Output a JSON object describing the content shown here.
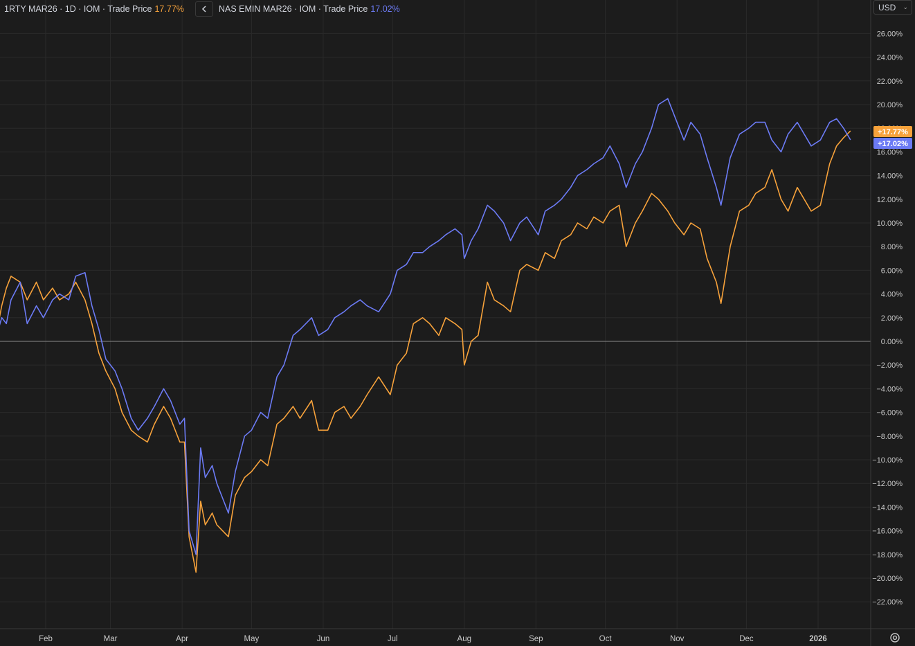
{
  "legend": [
    {
      "label": "1RTY MAR26 · 1D · IOM · Trade Price",
      "value": "17.77%",
      "color": "#f7a23b"
    },
    {
      "label": "NAS EMIN MAR26 · IOM · Trade Price",
      "value": "17.02%",
      "color": "#6c7bf5"
    }
  ],
  "toolbar": {
    "currency": "USD",
    "collapse_icon": "chevron-left-icon",
    "settings_icon": "settings-icon"
  },
  "chart_data": {
    "type": "line",
    "ylim": [
      -24,
      28
    ],
    "yticks": [
      -22,
      -20,
      -18,
      -16,
      -14,
      -12,
      -10,
      -8,
      -6,
      -4,
      -2,
      0,
      2,
      4,
      6,
      8,
      10,
      12,
      14,
      16,
      18,
      20,
      22,
      24,
      26
    ],
    "ytick_labels": [
      "−22.00%",
      "−20.00%",
      "−18.00%",
      "−16.00%",
      "−14.00%",
      "−12.00%",
      "−10.00%",
      "−8.00%",
      "−6.00%",
      "−4.00%",
      "−2.00%",
      "0.00%",
      "2.00%",
      "4.00%",
      "6.00%",
      "8.00%",
      "10.00%",
      "12.00%",
      "14.00%",
      "16.00%",
      "18.00%",
      "20.00%",
      "22.00%",
      "24.00%",
      "26.00%"
    ],
    "x_months": [
      {
        "date": "2025-02-01",
        "label": "Feb"
      },
      {
        "date": "2025-03-01",
        "label": "Mar"
      },
      {
        "date": "2025-04-01",
        "label": "Apr"
      },
      {
        "date": "2025-05-01",
        "label": "May"
      },
      {
        "date": "2025-06-01",
        "label": "Jun"
      },
      {
        "date": "2025-07-01",
        "label": "Jul"
      },
      {
        "date": "2025-08-01",
        "label": "Aug"
      },
      {
        "date": "2025-09-01",
        "label": "Sep"
      },
      {
        "date": "2025-10-01",
        "label": "Oct"
      },
      {
        "date": "2025-11-01",
        "label": "Nov"
      },
      {
        "date": "2025-12-01",
        "label": "Dec"
      },
      {
        "date": "2026-01-01",
        "label": "2026"
      }
    ],
    "grid": true,
    "zero_line": true,
    "series": [
      {
        "name": "1RTY MAR26",
        "color": "#f7a23b",
        "last_label": "+17.77%",
        "points": [
          [
            "2025-01-10",
            0
          ],
          [
            "2025-01-13",
            3
          ],
          [
            "2025-01-15",
            4.5
          ],
          [
            "2025-01-17",
            5.5
          ],
          [
            "2025-01-21",
            5
          ],
          [
            "2025-01-24",
            3.5
          ],
          [
            "2025-01-28",
            5
          ],
          [
            "2025-01-31",
            3.5
          ],
          [
            "2025-02-04",
            4.5
          ],
          [
            "2025-02-07",
            3.5
          ],
          [
            "2025-02-11",
            4
          ],
          [
            "2025-02-14",
            5
          ],
          [
            "2025-02-18",
            3.5
          ],
          [
            "2025-02-21",
            1.5
          ],
          [
            "2025-02-24",
            -1
          ],
          [
            "2025-02-27",
            -2.5
          ],
          [
            "2025-03-03",
            -4
          ],
          [
            "2025-03-06",
            -6
          ],
          [
            "2025-03-10",
            -7.5
          ],
          [
            "2025-03-13",
            -8
          ],
          [
            "2025-03-17",
            -8.5
          ],
          [
            "2025-03-20",
            -7
          ],
          [
            "2025-03-24",
            -5.5
          ],
          [
            "2025-03-27",
            -6.5
          ],
          [
            "2025-03-31",
            -8.5
          ],
          [
            "2025-04-02",
            -8.5
          ],
          [
            "2025-04-04",
            -16.5
          ],
          [
            "2025-04-07",
            -19.5
          ],
          [
            "2025-04-09",
            -13.5
          ],
          [
            "2025-04-11",
            -15.5
          ],
          [
            "2025-04-14",
            -14.5
          ],
          [
            "2025-04-16",
            -15.5
          ],
          [
            "2025-04-21",
            -16.5
          ],
          [
            "2025-04-24",
            -13
          ],
          [
            "2025-04-28",
            -11.5
          ],
          [
            "2025-05-01",
            -11
          ],
          [
            "2025-05-05",
            -10
          ],
          [
            "2025-05-08",
            -10.5
          ],
          [
            "2025-05-12",
            -7
          ],
          [
            "2025-05-15",
            -6.5
          ],
          [
            "2025-05-19",
            -5.5
          ],
          [
            "2025-05-22",
            -6.5
          ],
          [
            "2025-05-27",
            -5
          ],
          [
            "2025-05-30",
            -7.5
          ],
          [
            "2025-06-03",
            -7.5
          ],
          [
            "2025-06-06",
            -6
          ],
          [
            "2025-06-10",
            -5.5
          ],
          [
            "2025-06-13",
            -6.5
          ],
          [
            "2025-06-17",
            -5.5
          ],
          [
            "2025-06-20",
            -4.5
          ],
          [
            "2025-06-25",
            -3
          ],
          [
            "2025-06-30",
            -4.5
          ],
          [
            "2025-07-03",
            -2
          ],
          [
            "2025-07-07",
            -1
          ],
          [
            "2025-07-10",
            1.5
          ],
          [
            "2025-07-14",
            2
          ],
          [
            "2025-07-17",
            1.5
          ],
          [
            "2025-07-21",
            0.5
          ],
          [
            "2025-07-24",
            2
          ],
          [
            "2025-07-28",
            1.5
          ],
          [
            "2025-07-31",
            1
          ],
          [
            "2025-08-01",
            -2
          ],
          [
            "2025-08-04",
            0
          ],
          [
            "2025-08-07",
            0.5
          ],
          [
            "2025-08-11",
            5
          ],
          [
            "2025-08-14",
            3.5
          ],
          [
            "2025-08-18",
            3
          ],
          [
            "2025-08-21",
            2.5
          ],
          [
            "2025-08-25",
            6
          ],
          [
            "2025-08-28",
            6.5
          ],
          [
            "2025-09-02",
            6
          ],
          [
            "2025-09-05",
            7.5
          ],
          [
            "2025-09-09",
            7
          ],
          [
            "2025-09-12",
            8.5
          ],
          [
            "2025-09-16",
            9
          ],
          [
            "2025-09-19",
            10
          ],
          [
            "2025-09-23",
            9.5
          ],
          [
            "2025-09-26",
            10.5
          ],
          [
            "2025-09-30",
            10
          ],
          [
            "2025-10-03",
            11
          ],
          [
            "2025-10-07",
            11.5
          ],
          [
            "2025-10-10",
            8
          ],
          [
            "2025-10-14",
            10
          ],
          [
            "2025-10-17",
            11
          ],
          [
            "2025-10-21",
            12.5
          ],
          [
            "2025-10-24",
            12
          ],
          [
            "2025-10-28",
            11
          ],
          [
            "2025-10-31",
            10
          ],
          [
            "2025-11-04",
            9
          ],
          [
            "2025-11-07",
            10
          ],
          [
            "2025-11-11",
            9.5
          ],
          [
            "2025-11-14",
            7
          ],
          [
            "2025-11-18",
            5
          ],
          [
            "2025-11-20",
            3.2
          ],
          [
            "2025-11-24",
            8
          ],
          [
            "2025-11-28",
            11
          ],
          [
            "2025-12-02",
            11.5
          ],
          [
            "2025-12-05",
            12.5
          ],
          [
            "2025-12-09",
            13
          ],
          [
            "2025-12-12",
            14.5
          ],
          [
            "2025-12-16",
            12
          ],
          [
            "2025-12-19",
            11
          ],
          [
            "2025-12-23",
            13
          ],
          [
            "2025-12-29",
            11
          ],
          [
            "2026-01-02",
            11.5
          ],
          [
            "2026-01-06",
            15
          ],
          [
            "2026-01-09",
            16.5
          ],
          [
            "2026-01-12",
            17.2
          ],
          [
            "2026-01-15",
            17.77
          ]
        ]
      },
      {
        "name": "NAS EMIN MAR26",
        "color": "#6c7bf5",
        "last_label": "+17.02%",
        "points": [
          [
            "2025-01-10",
            0
          ],
          [
            "2025-01-13",
            2
          ],
          [
            "2025-01-15",
            1.5
          ],
          [
            "2025-01-17",
            3.5
          ],
          [
            "2025-01-21",
            5
          ],
          [
            "2025-01-24",
            1.5
          ],
          [
            "2025-01-28",
            3
          ],
          [
            "2025-01-31",
            2
          ],
          [
            "2025-02-04",
            3.5
          ],
          [
            "2025-02-07",
            4
          ],
          [
            "2025-02-11",
            3.5
          ],
          [
            "2025-02-14",
            5.5
          ],
          [
            "2025-02-18",
            5.8
          ],
          [
            "2025-02-21",
            3
          ],
          [
            "2025-02-24",
            1
          ],
          [
            "2025-02-27",
            -1.5
          ],
          [
            "2025-03-03",
            -2.5
          ],
          [
            "2025-03-06",
            -4
          ],
          [
            "2025-03-10",
            -6.5
          ],
          [
            "2025-03-13",
            -7.5
          ],
          [
            "2025-03-17",
            -6.5
          ],
          [
            "2025-03-20",
            -5.5
          ],
          [
            "2025-03-24",
            -4
          ],
          [
            "2025-03-27",
            -5
          ],
          [
            "2025-03-31",
            -7
          ],
          [
            "2025-04-02",
            -6.5
          ],
          [
            "2025-04-04",
            -16
          ],
          [
            "2025-04-07",
            -18
          ],
          [
            "2025-04-09",
            -9
          ],
          [
            "2025-04-11",
            -11.5
          ],
          [
            "2025-04-14",
            -10.5
          ],
          [
            "2025-04-16",
            -12
          ],
          [
            "2025-04-21",
            -14.5
          ],
          [
            "2025-04-24",
            -11
          ],
          [
            "2025-04-28",
            -8
          ],
          [
            "2025-05-01",
            -7.5
          ],
          [
            "2025-05-05",
            -6
          ],
          [
            "2025-05-08",
            -6.5
          ],
          [
            "2025-05-12",
            -3
          ],
          [
            "2025-05-15",
            -2
          ],
          [
            "2025-05-19",
            0.5
          ],
          [
            "2025-05-22",
            1
          ],
          [
            "2025-05-27",
            2
          ],
          [
            "2025-05-30",
            0.5
          ],
          [
            "2025-06-03",
            1
          ],
          [
            "2025-06-06",
            2
          ],
          [
            "2025-06-10",
            2.5
          ],
          [
            "2025-06-13",
            3
          ],
          [
            "2025-06-17",
            3.5
          ],
          [
            "2025-06-20",
            3
          ],
          [
            "2025-06-25",
            2.5
          ],
          [
            "2025-06-30",
            4
          ],
          [
            "2025-07-03",
            6
          ],
          [
            "2025-07-07",
            6.5
          ],
          [
            "2025-07-10",
            7.5
          ],
          [
            "2025-07-14",
            7.5
          ],
          [
            "2025-07-17",
            8
          ],
          [
            "2025-07-21",
            8.5
          ],
          [
            "2025-07-24",
            9
          ],
          [
            "2025-07-28",
            9.5
          ],
          [
            "2025-07-31",
            9
          ],
          [
            "2025-08-01",
            7
          ],
          [
            "2025-08-04",
            8.5
          ],
          [
            "2025-08-07",
            9.5
          ],
          [
            "2025-08-11",
            11.5
          ],
          [
            "2025-08-14",
            11
          ],
          [
            "2025-08-18",
            10
          ],
          [
            "2025-08-21",
            8.5
          ],
          [
            "2025-08-25",
            10
          ],
          [
            "2025-08-28",
            10.5
          ],
          [
            "2025-09-02",
            9
          ],
          [
            "2025-09-05",
            11
          ],
          [
            "2025-09-09",
            11.5
          ],
          [
            "2025-09-12",
            12
          ],
          [
            "2025-09-16",
            13
          ],
          [
            "2025-09-19",
            14
          ],
          [
            "2025-09-23",
            14.5
          ],
          [
            "2025-09-26",
            15
          ],
          [
            "2025-09-30",
            15.5
          ],
          [
            "2025-10-03",
            16.5
          ],
          [
            "2025-10-07",
            15
          ],
          [
            "2025-10-10",
            13
          ],
          [
            "2025-10-14",
            15
          ],
          [
            "2025-10-17",
            16
          ],
          [
            "2025-10-21",
            18
          ],
          [
            "2025-10-24",
            20
          ],
          [
            "2025-10-28",
            20.5
          ],
          [
            "2025-10-31",
            19
          ],
          [
            "2025-11-04",
            17
          ],
          [
            "2025-11-07",
            18.5
          ],
          [
            "2025-11-11",
            17.5
          ],
          [
            "2025-11-14",
            15.5
          ],
          [
            "2025-11-18",
            13
          ],
          [
            "2025-11-20",
            11.5
          ],
          [
            "2025-11-24",
            15.5
          ],
          [
            "2025-11-28",
            17.5
          ],
          [
            "2025-12-02",
            18
          ],
          [
            "2025-12-05",
            18.5
          ],
          [
            "2025-12-09",
            18.5
          ],
          [
            "2025-12-12",
            17
          ],
          [
            "2025-12-16",
            16
          ],
          [
            "2025-12-19",
            17.5
          ],
          [
            "2025-12-23",
            18.5
          ],
          [
            "2025-12-29",
            16.5
          ],
          [
            "2026-01-02",
            17
          ],
          [
            "2026-01-06",
            18.5
          ],
          [
            "2026-01-09",
            18.8
          ],
          [
            "2026-01-12",
            18
          ],
          [
            "2026-01-15",
            17.02
          ]
        ]
      }
    ]
  }
}
